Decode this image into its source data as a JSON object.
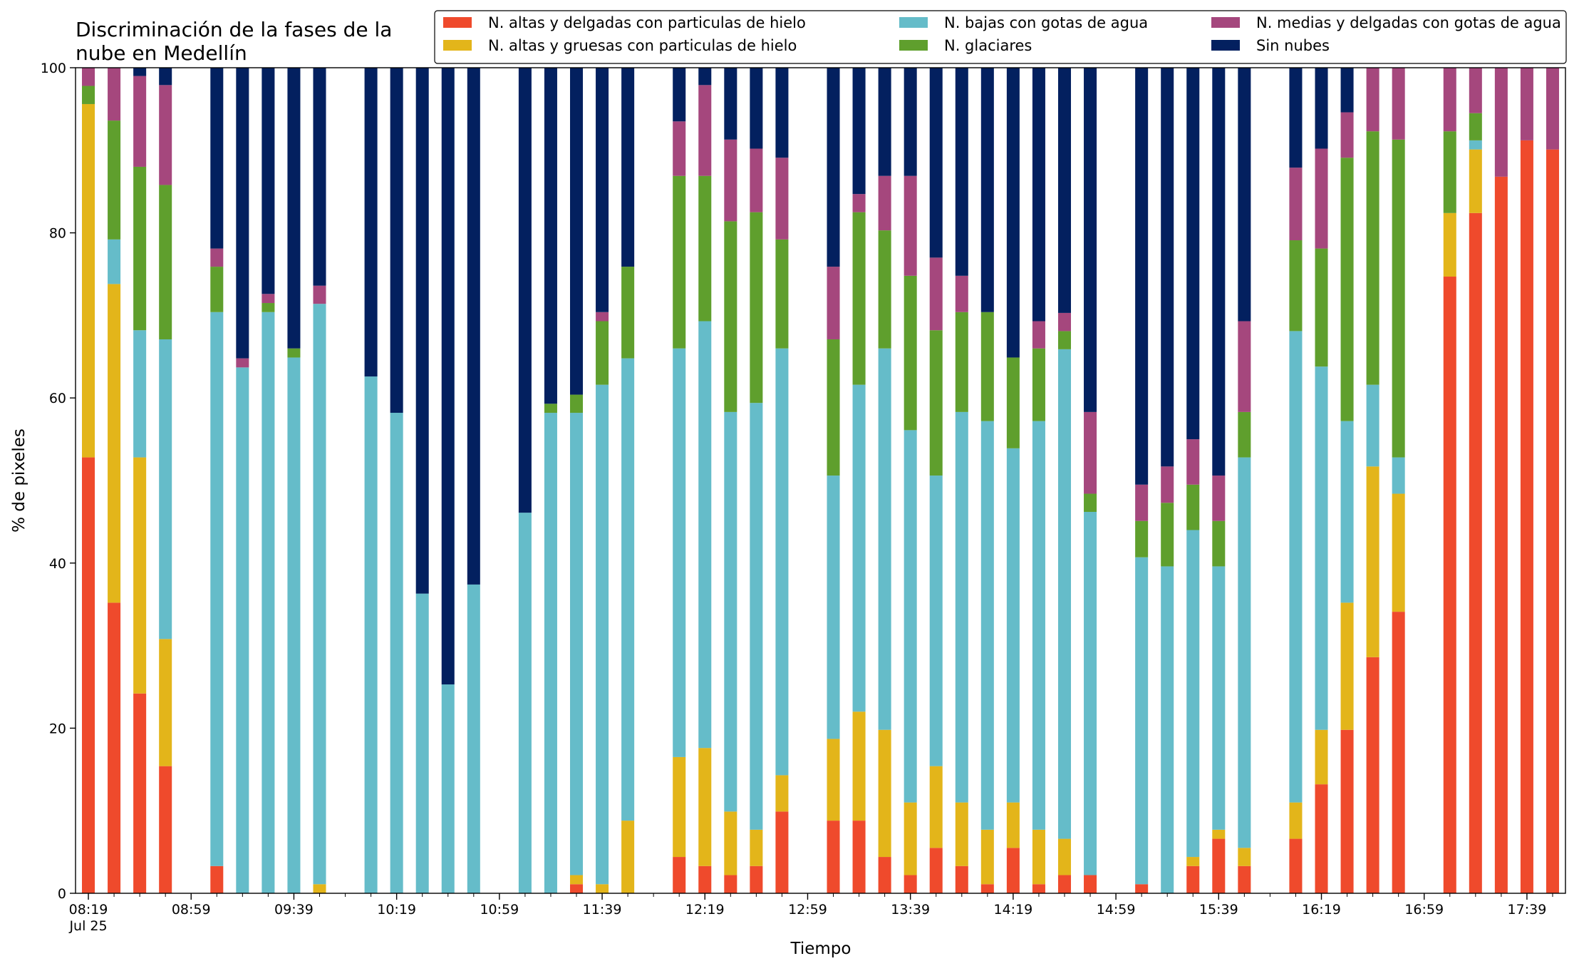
{
  "chart_data": {
    "type": "bar",
    "stacked": true,
    "title": "Discriminación de la fases de la nube en Medellín",
    "title_lines": [
      "Discriminación de la fases de la",
      "nube en Medellín"
    ],
    "xlabel": "Tiempo",
    "ylabel": "% de pixeles",
    "ylim": [
      0,
      100
    ],
    "yticks": [
      "0",
      "20",
      "40",
      "60",
      "80",
      "100"
    ],
    "x_range_minutes": [
      494,
      1074
    ],
    "x_tick_labels": [
      {
        "minute": 499,
        "label": "08:19",
        "sub": "Jul 25"
      },
      {
        "minute": 539,
        "label": "08:59"
      },
      {
        "minute": 579,
        "label": "09:39"
      },
      {
        "minute": 619,
        "label": "10:19"
      },
      {
        "minute": 659,
        "label": "10:59"
      },
      {
        "minute": 699,
        "label": "11:39"
      },
      {
        "minute": 739,
        "label": "12:19"
      },
      {
        "minute": 779,
        "label": "12:59"
      },
      {
        "minute": 819,
        "label": "13:39"
      },
      {
        "minute": 859,
        "label": "14:19"
      },
      {
        "minute": 899,
        "label": "14:59"
      },
      {
        "minute": 939,
        "label": "15:39"
      },
      {
        "minute": 979,
        "label": "16:19"
      },
      {
        "minute": 1019,
        "label": "16:59"
      },
      {
        "minute": 1059,
        "label": "17:39"
      }
    ],
    "x_minor_tick_minutes": [
      509,
      519,
      529,
      549,
      559,
      569,
      589,
      599,
      609,
      629,
      639,
      649,
      669,
      679,
      689,
      709,
      719,
      729,
      749,
      759,
      769,
      789,
      799,
      809,
      829,
      839,
      849,
      869,
      879,
      889,
      909,
      919,
      929,
      949,
      959,
      969,
      989,
      999,
      1009,
      1029,
      1039,
      1049,
      1069
    ],
    "bar_width_minutes": 5,
    "legend_placement": "top-right",
    "series": [
      {
        "name": "N. altas y delgadas con particulas de hielo",
        "color": "#ef4a2c"
      },
      {
        "name": "N. altas y gruesas con particulas de hielo",
        "color": "#e3b51a"
      },
      {
        "name": "N. bajas con gotas de agua",
        "color": "#65bcc9"
      },
      {
        "name": "N. glaciares",
        "color": "#5f9f2d"
      },
      {
        "name": "N. medias y delgadas con gotas de agua",
        "color": "#a5477d"
      },
      {
        "name": "Sin nubes",
        "color": "#03205f"
      }
    ],
    "bars": [
      {
        "time": "08:19",
        "values": [
          52.8,
          42.8,
          0,
          2.2,
          2.2,
          0
        ]
      },
      {
        "time": "08:29",
        "values": [
          35.2,
          38.6,
          5.4,
          14.4,
          6.4,
          0
        ]
      },
      {
        "time": "08:39",
        "values": [
          24.2,
          28.6,
          15.4,
          19.8,
          11.0,
          1.0
        ]
      },
      {
        "time": "08:49",
        "values": [
          15.4,
          15.4,
          36.3,
          18.7,
          12.1,
          2.1
        ]
      },
      {
        "time": "09:09",
        "values": [
          3.3,
          0,
          67.1,
          5.5,
          2.2,
          21.9
        ]
      },
      {
        "time": "09:19",
        "values": [
          0,
          0,
          63.7,
          0,
          1.1,
          35.2
        ]
      },
      {
        "time": "09:29",
        "values": [
          0,
          0,
          70.4,
          1.1,
          1.1,
          27.4
        ]
      },
      {
        "time": "09:39",
        "values": [
          0,
          0,
          64.9,
          1.1,
          0,
          34.0
        ]
      },
      {
        "time": "09:49",
        "values": [
          0,
          1.1,
          70.3,
          0,
          2.2,
          26.4
        ]
      },
      {
        "time": "10:09",
        "values": [
          0,
          0,
          62.6,
          0,
          0,
          37.4
        ]
      },
      {
        "time": "10:19",
        "values": [
          0,
          0,
          58.2,
          0,
          0,
          41.8
        ]
      },
      {
        "time": "10:29",
        "values": [
          0,
          0,
          36.3,
          0,
          0,
          63.7
        ]
      },
      {
        "time": "10:39",
        "values": [
          0,
          0,
          25.3,
          0,
          0,
          74.7
        ]
      },
      {
        "time": "10:49",
        "values": [
          0,
          0,
          37.4,
          0,
          0,
          62.6
        ]
      },
      {
        "time": "11:09",
        "values": [
          0,
          0,
          46.1,
          0,
          0,
          53.9
        ]
      },
      {
        "time": "11:19",
        "values": [
          0,
          0,
          58.2,
          1.1,
          0,
          40.7
        ]
      },
      {
        "time": "11:29",
        "values": [
          1.1,
          1.1,
          56.0,
          2.2,
          0,
          39.6
        ]
      },
      {
        "time": "11:39",
        "values": [
          0,
          1.1,
          60.5,
          7.7,
          1.1,
          29.6
        ]
      },
      {
        "time": "11:49",
        "values": [
          0,
          8.8,
          56.0,
          11.1,
          0,
          24.1
        ]
      },
      {
        "time": "12:09",
        "values": [
          4.4,
          12.1,
          49.5,
          20.9,
          6.6,
          6.5
        ]
      },
      {
        "time": "12:19",
        "values": [
          3.3,
          14.3,
          51.7,
          17.6,
          11.0,
          2.1
        ]
      },
      {
        "time": "12:29",
        "values": [
          2.2,
          7.7,
          48.4,
          23.1,
          9.9,
          8.7
        ]
      },
      {
        "time": "12:39",
        "values": [
          3.3,
          4.4,
          51.7,
          23.1,
          7.7,
          9.8
        ]
      },
      {
        "time": "12:49",
        "values": [
          9.9,
          4.4,
          51.7,
          13.2,
          9.9,
          10.9
        ]
      },
      {
        "time": "13:09",
        "values": [
          8.8,
          9.9,
          31.9,
          16.5,
          8.8,
          24.1
        ]
      },
      {
        "time": "13:19",
        "values": [
          8.8,
          13.2,
          39.6,
          20.9,
          2.2,
          15.3
        ]
      },
      {
        "time": "13:29",
        "values": [
          4.4,
          15.4,
          46.2,
          14.3,
          6.6,
          13.1
        ]
      },
      {
        "time": "13:39",
        "values": [
          2.2,
          8.8,
          45.1,
          18.7,
          12.1,
          13.1
        ]
      },
      {
        "time": "13:49",
        "values": [
          5.5,
          9.9,
          35.2,
          17.6,
          8.8,
          23.0
        ]
      },
      {
        "time": "13:59",
        "values": [
          3.3,
          7.7,
          47.3,
          12.1,
          4.4,
          25.2
        ]
      },
      {
        "time": "14:09",
        "values": [
          1.1,
          6.6,
          49.5,
          13.2,
          0,
          29.6
        ]
      },
      {
        "time": "14:19",
        "values": [
          5.5,
          5.5,
          42.9,
          11.0,
          0,
          35.1
        ]
      },
      {
        "time": "14:29",
        "values": [
          1.1,
          6.6,
          49.5,
          8.8,
          3.3,
          30.7
        ]
      },
      {
        "time": "14:39",
        "values": [
          2.2,
          4.4,
          59.3,
          2.2,
          2.2,
          29.7
        ]
      },
      {
        "time": "14:49",
        "values": [
          2.2,
          0,
          44.0,
          2.2,
          9.9,
          41.7
        ]
      },
      {
        "time": "15:09",
        "values": [
          1.1,
          0,
          39.6,
          4.4,
          4.4,
          50.5
        ]
      },
      {
        "time": "15:19",
        "values": [
          0,
          0,
          39.6,
          7.7,
          4.4,
          48.3
        ]
      },
      {
        "time": "15:29",
        "values": [
          3.3,
          1.1,
          39.6,
          5.5,
          5.5,
          45.0
        ]
      },
      {
        "time": "15:39",
        "values": [
          6.6,
          1.1,
          31.9,
          5.5,
          5.5,
          49.4
        ]
      },
      {
        "time": "15:49",
        "values": [
          3.3,
          2.2,
          47.3,
          5.5,
          11.0,
          30.7
        ]
      },
      {
        "time": "16:09",
        "values": [
          6.6,
          4.4,
          57.1,
          11.0,
          8.8,
          12.1
        ]
      },
      {
        "time": "16:19",
        "values": [
          13.2,
          6.6,
          44.0,
          14.3,
          12.1,
          9.8
        ]
      },
      {
        "time": "16:29",
        "values": [
          19.8,
          15.4,
          22.0,
          31.9,
          5.5,
          5.4
        ]
      },
      {
        "time": "16:39",
        "values": [
          28.6,
          23.1,
          9.9,
          30.7,
          7.7,
          0
        ]
      },
      {
        "time": "16:49",
        "values": [
          34.1,
          14.3,
          4.4,
          38.5,
          8.7,
          0
        ]
      },
      {
        "time": "17:09",
        "values": [
          74.7,
          7.7,
          0,
          9.9,
          7.7,
          0
        ]
      },
      {
        "time": "17:19",
        "values": [
          82.4,
          7.7,
          1.1,
          3.3,
          5.5,
          0
        ]
      },
      {
        "time": "17:29",
        "values": [
          86.8,
          0,
          0,
          0,
          13.2,
          0
        ]
      },
      {
        "time": "17:39",
        "values": [
          91.2,
          0,
          0,
          0,
          8.8,
          0
        ]
      },
      {
        "time": "17:49",
        "values": [
          90.1,
          0,
          0,
          0,
          9.9,
          0
        ]
      }
    ]
  }
}
